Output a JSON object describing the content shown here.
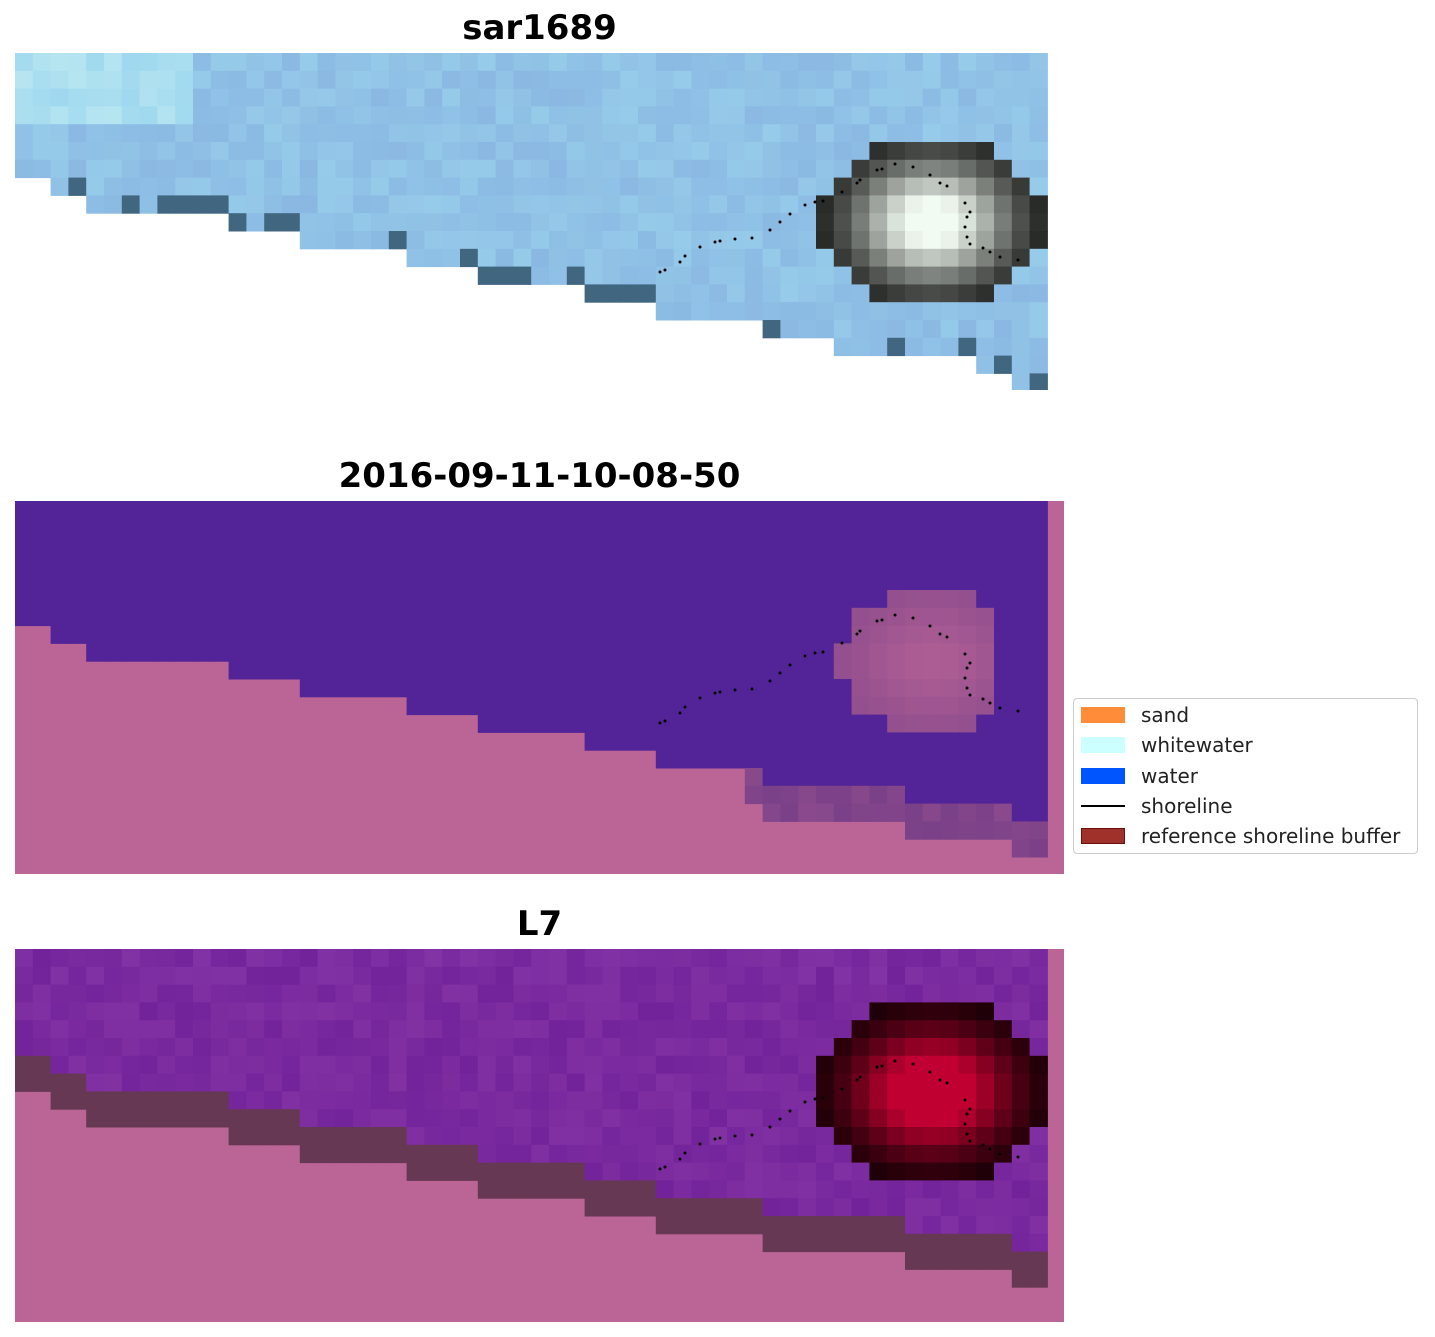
{
  "panels": [
    {
      "title": "sar1689",
      "style": "sar"
    },
    {
      "title": "2016-09-11-10-08-50",
      "style": "classified"
    },
    {
      "title": "L7",
      "style": "l7"
    }
  ],
  "legend": {
    "items": [
      {
        "label": "sand",
        "color": "#ff8c38",
        "kind": "patch"
      },
      {
        "label": "whitewater",
        "color": "#ccffff",
        "kind": "patch"
      },
      {
        "label": "water",
        "color": "#0055ff",
        "kind": "patch"
      },
      {
        "label": "shoreline",
        "color": "#000000",
        "kind": "line"
      },
      {
        "label": "reference shoreline buffer",
        "color": "#a0302a",
        "kind": "patch"
      }
    ]
  },
  "colors": {
    "sar_sky": "#8ab8e2",
    "sar_light": "#9fd8ef",
    "sar_bright": "#f2fbf2",
    "sar_dark": "#6aaad5",
    "class_water": "#532497",
    "class_land": "#bb6597",
    "class_mid": "#8a4a8c",
    "class_dark": "#7a4088",
    "l7_purple": "#73239a",
    "l7_red": "#c00030",
    "shoreline": "#000000"
  }
}
